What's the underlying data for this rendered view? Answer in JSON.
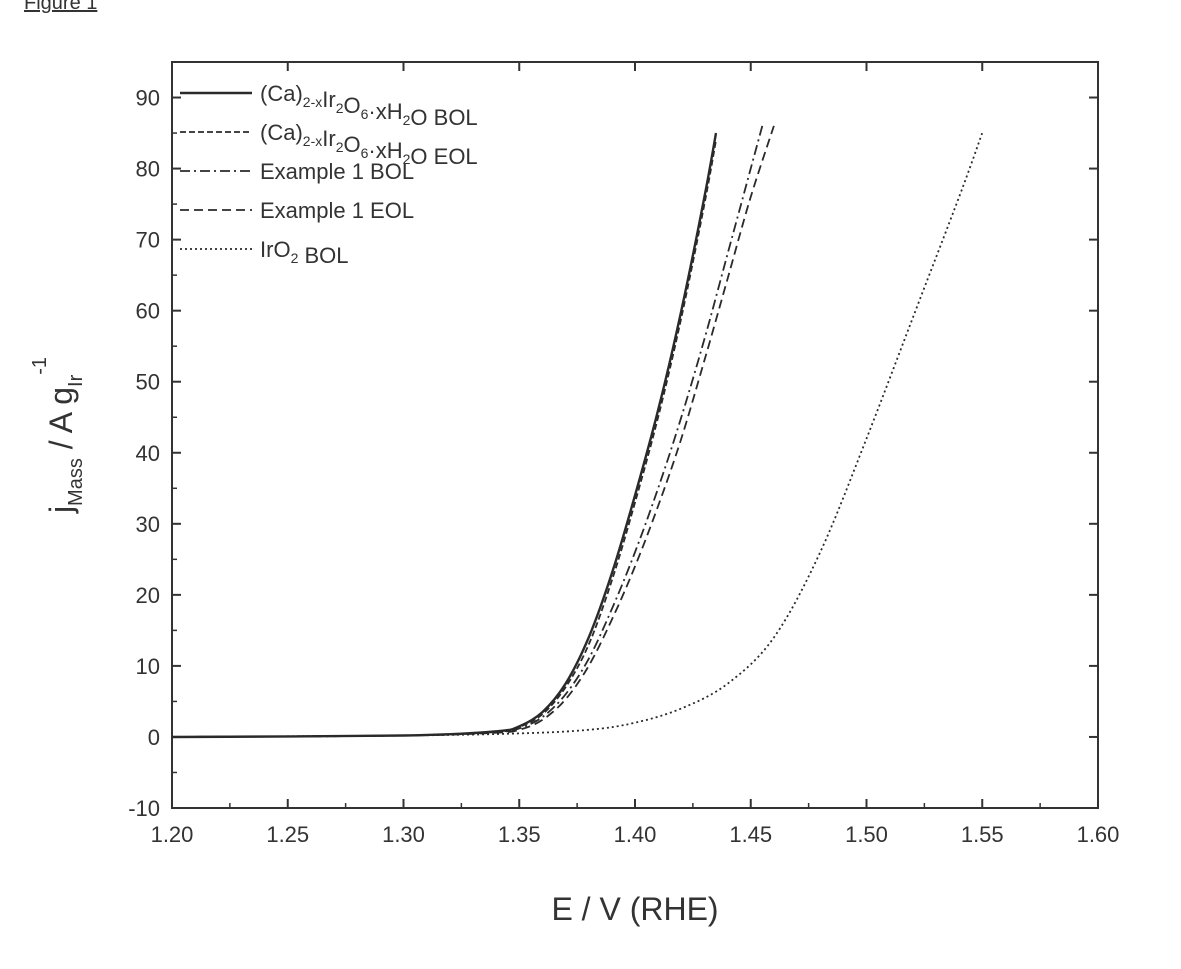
{
  "figure_label": "Figure 1",
  "chart_data": {
    "type": "line",
    "xlabel": "E / V (RHE)",
    "ylabel": "j",
    "ylabel_sub": "Mass",
    "ylabel_unit": " / A g",
    "ylabel_unit_sub": "Ir",
    "ylabel_unit_sup": "-1",
    "xlim": [
      1.2,
      1.6
    ],
    "ylim": [
      -10,
      95
    ],
    "x_ticks": [
      "1.20",
      "1.25",
      "1.30",
      "1.35",
      "1.40",
      "1.45",
      "1.50",
      "1.55",
      "1.60"
    ],
    "y_ticks": [
      "-10",
      "0",
      "10",
      "20",
      "30",
      "40",
      "50",
      "60",
      "70",
      "80",
      "90"
    ],
    "grid": false,
    "legend_position": "top-left",
    "series": [
      {
        "name": "(Ca)2-xIr2O6·xH2O BOL",
        "legend_parts": [
          [
            "(Ca)",
            ""
          ],
          [
            "2-x",
            "sub"
          ],
          [
            "Ir",
            ""
          ],
          [
            "2",
            "sub"
          ],
          [
            "O",
            ""
          ],
          [
            "6",
            "sub"
          ],
          [
            "·xH",
            ""
          ],
          [
            "2",
            "sub"
          ],
          [
            "O BOL",
            ""
          ]
        ],
        "style": "solid",
        "x": [
          1.2,
          1.3,
          1.34,
          1.35,
          1.36,
          1.37,
          1.38,
          1.39,
          1.4,
          1.41,
          1.42,
          1.43,
          1.435
        ],
        "y": [
          0,
          0.2,
          0.8,
          1.5,
          3.5,
          7.5,
          14,
          23,
          34,
          46,
          60,
          76,
          85
        ]
      },
      {
        "name": "(Ca)2-xIr2O6·xH2O EOL",
        "legend_parts": [
          [
            "(Ca)",
            ""
          ],
          [
            "2-x",
            "sub"
          ],
          [
            "Ir",
            ""
          ],
          [
            "2",
            "sub"
          ],
          [
            "O",
            ""
          ],
          [
            "6",
            "sub"
          ],
          [
            "·xH",
            ""
          ],
          [
            "2",
            "sub"
          ],
          [
            "O EOL",
            ""
          ]
        ],
        "style": "dashed-fine",
        "x": [
          1.2,
          1.3,
          1.34,
          1.35,
          1.36,
          1.37,
          1.38,
          1.39,
          1.4,
          1.41,
          1.42,
          1.43,
          1.435
        ],
        "y": [
          0,
          0.2,
          0.7,
          1.4,
          3.2,
          7,
          13,
          22,
          33,
          45,
          59,
          75,
          84
        ]
      },
      {
        "name": "Example 1 BOL",
        "legend_parts": [
          [
            "Example 1 BOL",
            ""
          ]
        ],
        "style": "dash-dot",
        "x": [
          1.2,
          1.3,
          1.34,
          1.35,
          1.36,
          1.37,
          1.38,
          1.39,
          1.4,
          1.41,
          1.42,
          1.43,
          1.44,
          1.45,
          1.455
        ],
        "y": [
          0,
          0.2,
          0.7,
          1.2,
          2.8,
          6,
          11,
          18,
          26,
          35,
          45,
          56,
          68,
          80,
          86
        ]
      },
      {
        "name": "Example 1 EOL",
        "legend_parts": [
          [
            "Example 1 EOL",
            ""
          ]
        ],
        "style": "dashed",
        "x": [
          1.2,
          1.3,
          1.34,
          1.35,
          1.36,
          1.37,
          1.38,
          1.39,
          1.4,
          1.41,
          1.42,
          1.43,
          1.44,
          1.45,
          1.46
        ],
        "y": [
          0,
          0.2,
          0.6,
          1.0,
          2.4,
          5.3,
          10,
          16.5,
          24,
          32.5,
          42,
          53,
          64.5,
          76,
          86
        ]
      },
      {
        "name": "IrO2 BOL",
        "legend_parts": [
          [
            "IrO",
            ""
          ],
          [
            "2",
            "sub"
          ],
          [
            " BOL",
            ""
          ]
        ],
        "style": "dotted",
        "x": [
          1.2,
          1.3,
          1.35,
          1.38,
          1.4,
          1.42,
          1.44,
          1.46,
          1.48,
          1.5,
          1.52,
          1.54,
          1.55
        ],
        "y": [
          0,
          0.2,
          0.5,
          1.0,
          2.0,
          4.0,
          7.5,
          14,
          26,
          42,
          59,
          76,
          85
        ]
      }
    ]
  }
}
